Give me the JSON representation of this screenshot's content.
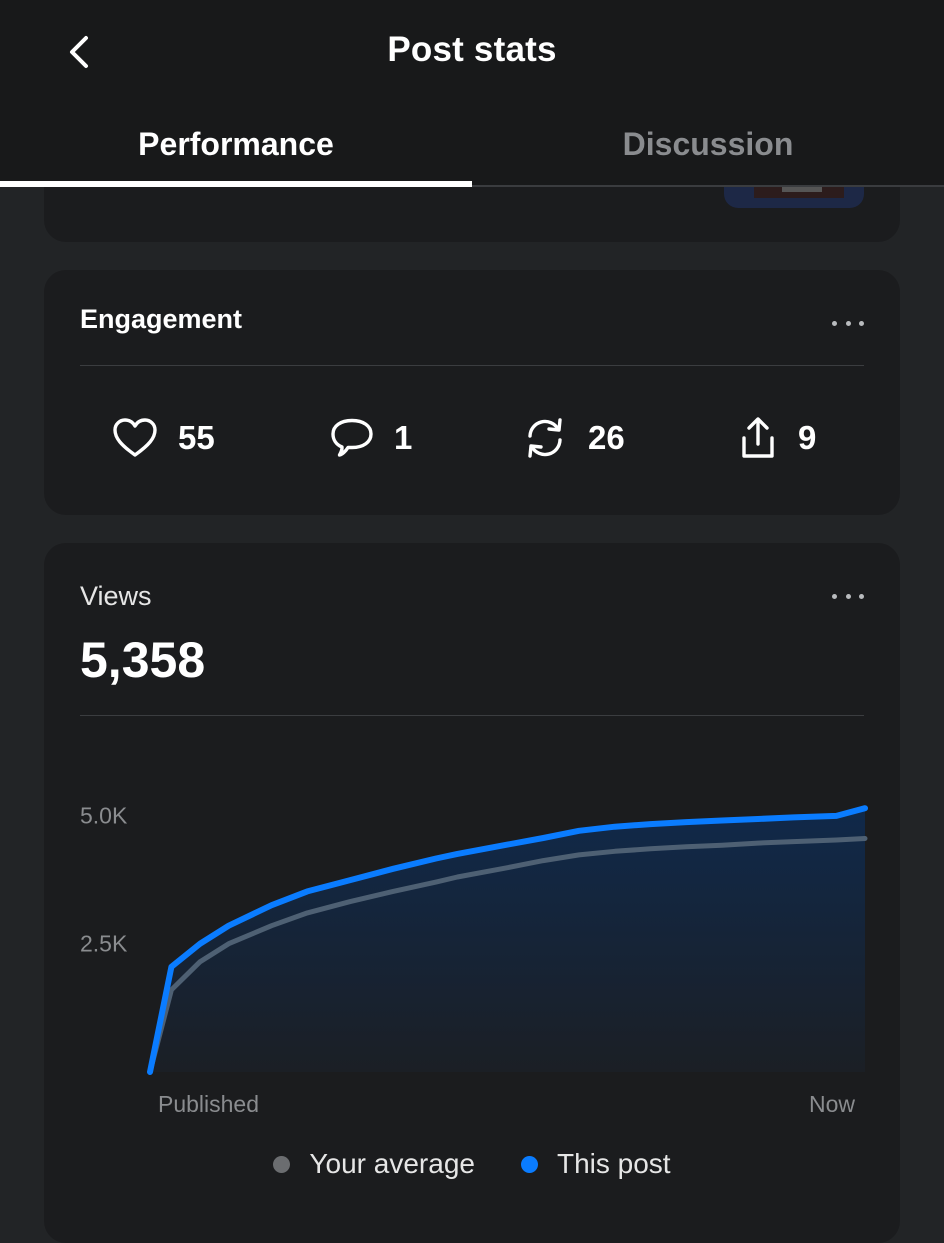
{
  "header": {
    "title": "Post stats",
    "tabs": [
      {
        "label": "Performance",
        "active": true
      },
      {
        "label": "Discussion",
        "active": false
      }
    ]
  },
  "engagement": {
    "title": "Engagement",
    "likes": "55",
    "comments": "1",
    "reposts": "26",
    "shares": "9"
  },
  "views": {
    "label": "Views",
    "total": "5,358"
  },
  "colors": {
    "this_post": "#0a7cff",
    "average": "#4e6073",
    "legend_average": "#6b6d70"
  },
  "chart_data": {
    "type": "area",
    "x_start_label": "Published",
    "x_end_label": "Now",
    "y_tick_labels": [
      "2.5K",
      "5.0K"
    ],
    "y_ticks": [
      2500,
      5000
    ],
    "ylim": [
      0,
      5300
    ],
    "x": [
      0,
      0.03,
      0.07,
      0.11,
      0.17,
      0.22,
      0.28,
      0.34,
      0.4,
      0.43,
      0.5,
      0.55,
      0.6,
      0.65,
      0.7,
      0.75,
      0.8,
      0.85,
      0.9,
      0.96,
      1.0
    ],
    "series": [
      {
        "name": "Your average",
        "values": [
          0,
          1600,
          2150,
          2500,
          2850,
          3100,
          3320,
          3520,
          3700,
          3800,
          3980,
          4120,
          4230,
          4300,
          4350,
          4390,
          4420,
          4460,
          4490,
          4520,
          4550
        ]
      },
      {
        "name": "This post",
        "values": [
          0,
          2050,
          2500,
          2850,
          3250,
          3520,
          3740,
          3960,
          4160,
          4250,
          4430,
          4560,
          4700,
          4780,
          4830,
          4870,
          4900,
          4930,
          4960,
          4990,
          5140
        ]
      }
    ],
    "legend": [
      "Your average",
      "This post"
    ],
    "legend_position": "bottom"
  }
}
